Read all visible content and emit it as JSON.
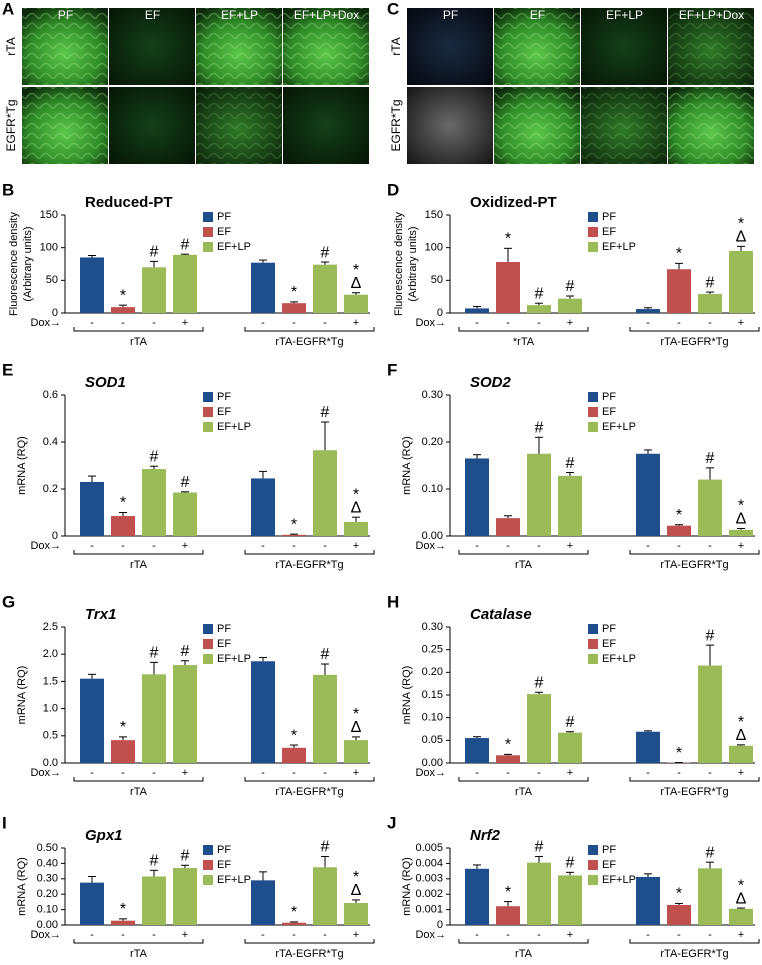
{
  "image_panels": [
    {
      "letter": "A",
      "columns": [
        "PF",
        "EF",
        "EF+LP",
        "EF+LP+Dox"
      ],
      "rows": [
        "rTA",
        "EGFR*Tg"
      ]
    },
    {
      "letter": "C",
      "columns": [
        "PF",
        "EF",
        "EF+LP",
        "EF+LP+Dox"
      ],
      "rows": [
        "rTA",
        "EGFR*Tg"
      ]
    }
  ],
  "chart_data": [
    {
      "type": "bar",
      "letter": "B",
      "title": "Reduced-PT",
      "title_italic": false,
      "ylabel": [
        "Fluorescence density",
        "(Arbitrary units)"
      ],
      "legend": [
        {
          "name": "PF",
          "color": "#1f4e8c"
        },
        {
          "name": "EF",
          "color": "#c0504d"
        },
        {
          "name": "EF+LP",
          "color": "#9bbb59"
        }
      ],
      "colors": [
        "#1f4e8c",
        "#c0504d",
        "#9bbb59",
        "#9bbb59",
        "#1f4e8c",
        "#c0504d",
        "#9bbb59",
        "#9bbb59"
      ],
      "dox_label": "Dox→",
      "dox": [
        "-",
        "-",
        "-",
        "+",
        "-",
        "-",
        "-",
        "+"
      ],
      "groups": [
        "rTA",
        "rTA-EGFR*Tg"
      ],
      "values": [
        85,
        9,
        70,
        89,
        77,
        15,
        74,
        28
      ],
      "errors": [
        3,
        3,
        9,
        1,
        4,
        2,
        4,
        3
      ],
      "annotations": [
        null,
        [
          "*"
        ],
        [
          "#"
        ],
        [
          "#"
        ],
        null,
        [
          "*"
        ],
        [
          "#"
        ],
        [
          "*",
          "Δ"
        ]
      ],
      "ylim": [
        0,
        150
      ],
      "yticks": [
        0,
        50,
        100,
        150
      ]
    },
    {
      "type": "bar",
      "letter": "D",
      "title": "Oxidized-PT",
      "title_italic": false,
      "ylabel": [
        "Fluorescence density",
        "(Arbitrary units)"
      ],
      "legend": [
        {
          "name": "PF",
          "color": "#1f4e8c"
        },
        {
          "name": "EF",
          "color": "#c0504d"
        },
        {
          "name": "EF+LP",
          "color": "#9bbb59"
        }
      ],
      "colors": [
        "#1f4e8c",
        "#c0504d",
        "#9bbb59",
        "#9bbb59",
        "#1f4e8c",
        "#c0504d",
        "#9bbb59",
        "#9bbb59"
      ],
      "dox_label": "Dox→",
      "dox": [
        "-",
        "-",
        "-",
        "+",
        "-",
        "-",
        "-",
        "+"
      ],
      "groups": [
        "*rTA",
        "rTA-EGFR*Tg"
      ],
      "values": [
        7,
        78,
        12,
        22,
        6,
        67,
        29,
        95
      ],
      "errors": [
        3,
        21,
        3,
        4,
        2,
        9,
        3,
        7
      ],
      "annotations": [
        null,
        [
          "*"
        ],
        [
          "#"
        ],
        [
          "#"
        ],
        null,
        [
          "*"
        ],
        [
          "#"
        ],
        [
          "*",
          "Δ"
        ]
      ],
      "ylim": [
        0,
        150
      ],
      "yticks": [
        0,
        50,
        100,
        150
      ]
    },
    {
      "type": "bar",
      "letter": "E",
      "title": "SOD1",
      "title_italic": true,
      "ylabel": [
        "mRNA (RQ)"
      ],
      "legend": [
        {
          "name": "PF",
          "color": "#1f4e8c"
        },
        {
          "name": "EF",
          "color": "#c0504d"
        },
        {
          "name": "EF+LP",
          "color": "#9bbb59"
        }
      ],
      "colors": [
        "#1f4e8c",
        "#c0504d",
        "#9bbb59",
        "#9bbb59",
        "#1f4e8c",
        "#c0504d",
        "#9bbb59",
        "#9bbb59"
      ],
      "dox_label": "Dox→",
      "dox": [
        "-",
        "-",
        "-",
        "+",
        "-",
        "-",
        "-",
        "+"
      ],
      "groups": [
        "rTA",
        "rTA-EGFR*Tg"
      ],
      "values": [
        0.23,
        0.085,
        0.285,
        0.185,
        0.245,
        0.005,
        0.365,
        0.06
      ],
      "errors": [
        0.025,
        0.015,
        0.012,
        0.003,
        0.03,
        0.003,
        0.12,
        0.02
      ],
      "annotations": [
        null,
        [
          "*"
        ],
        [
          "#"
        ],
        [
          "#"
        ],
        null,
        [
          "*"
        ],
        [
          "#"
        ],
        [
          "*",
          "Δ"
        ]
      ],
      "ylim": [
        0,
        0.6
      ],
      "yticks": [
        0,
        0.2,
        0.4,
        0.6
      ]
    },
    {
      "type": "bar",
      "letter": "F",
      "title": "SOD2",
      "title_italic": true,
      "ylabel": [
        "mRNA (RQ)"
      ],
      "legend": [
        {
          "name": "PF",
          "color": "#1f4e8c"
        },
        {
          "name": "EF",
          "color": "#c0504d"
        },
        {
          "name": "EF+LP",
          "color": "#9bbb59"
        }
      ],
      "colors": [
        "#1f4e8c",
        "#c0504d",
        "#9bbb59",
        "#9bbb59",
        "#1f4e8c",
        "#c0504d",
        "#9bbb59",
        "#9bbb59"
      ],
      "dox_label": "Dox→",
      "dox": [
        "-",
        "-",
        "-",
        "+",
        "-",
        "-",
        "-",
        "+"
      ],
      "groups": [
        "rTA",
        "rTA-EGFR*Tg"
      ],
      "values": [
        0.165,
        0.038,
        0.175,
        0.128,
        0.175,
        0.022,
        0.12,
        0.013
      ],
      "errors": [
        0.008,
        0.005,
        0.035,
        0.007,
        0.008,
        0.002,
        0.025,
        0.003
      ],
      "annotations": [
        null,
        null,
        [
          "#"
        ],
        [
          "#"
        ],
        null,
        [
          "*"
        ],
        [
          "#"
        ],
        [
          "*",
          "Δ"
        ]
      ],
      "ylim": [
        0,
        0.3
      ],
      "yticks": [
        {
          "value": 0,
          "label": "0.00"
        },
        {
          "value": 0.1,
          "label": "0.10"
        },
        {
          "value": 0.2,
          "label": "0.20"
        },
        {
          "value": 0.3,
          "label": "0.30"
        }
      ]
    },
    {
      "type": "bar",
      "letter": "G",
      "title": "Trx1",
      "title_italic": true,
      "ylabel": [
        "mRNA (RQ)"
      ],
      "legend": [
        {
          "name": "PF",
          "color": "#1f4e8c"
        },
        {
          "name": "EF",
          "color": "#c0504d"
        },
        {
          "name": "EF+LP",
          "color": "#9bbb59"
        }
      ],
      "colors": [
        "#1f4e8c",
        "#c0504d",
        "#9bbb59",
        "#9bbb59",
        "#1f4e8c",
        "#c0504d",
        "#9bbb59",
        "#9bbb59"
      ],
      "dox_label": "Dox→",
      "dox": [
        "-",
        "-",
        "-",
        "+",
        "-",
        "-",
        "-",
        "+"
      ],
      "groups": [
        "rTA",
        "rTA-EGFR*Tg"
      ],
      "values": [
        1.55,
        0.42,
        1.63,
        1.8,
        1.87,
        0.28,
        1.62,
        0.42
      ],
      "errors": [
        0.08,
        0.06,
        0.22,
        0.08,
        0.07,
        0.05,
        0.2,
        0.06
      ],
      "annotations": [
        null,
        [
          "*"
        ],
        [
          "#"
        ],
        [
          "#"
        ],
        null,
        [
          "*"
        ],
        [
          "#"
        ],
        [
          "*",
          "Δ"
        ]
      ],
      "ylim": [
        0,
        2.5
      ],
      "yticks": [
        {
          "value": 0,
          "label": "0.0"
        },
        0.5,
        {
          "value": 1,
          "label": "1.0"
        },
        1.5,
        {
          "value": 2,
          "label": "2.0"
        },
        2.5
      ]
    },
    {
      "type": "bar",
      "letter": "H",
      "title": "Catalase",
      "title_italic": true,
      "ylabel": [
        "mRNA (RQ)"
      ],
      "legend": [
        {
          "name": "PF",
          "color": "#1f4e8c"
        },
        {
          "name": "EF",
          "color": "#c0504d"
        },
        {
          "name": "EF+LP",
          "color": "#9bbb59"
        }
      ],
      "colors": [
        "#1f4e8c",
        "#c0504d",
        "#9bbb59",
        "#9bbb59",
        "#1f4e8c",
        "#c0504d",
        "#9bbb59",
        "#9bbb59"
      ],
      "dox_label": "Dox→",
      "dox": [
        "-",
        "-",
        "-",
        "+",
        "-",
        "-",
        "-",
        "+"
      ],
      "groups": [
        "rTA",
        "rTA-EGFR*Tg"
      ],
      "values": [
        0.055,
        0.017,
        0.152,
        0.067,
        0.069,
        0.001,
        0.215,
        0.038
      ],
      "errors": [
        0.003,
        0.002,
        0.004,
        0.002,
        0.002,
        0,
        0.045,
        0.002
      ],
      "annotations": [
        null,
        [
          "*"
        ],
        [
          "#"
        ],
        [
          "#"
        ],
        null,
        [
          "*"
        ],
        [
          "#"
        ],
        [
          "*",
          "Δ"
        ]
      ],
      "ylim": [
        0,
        0.3
      ],
      "yticks": [
        {
          "value": 0,
          "label": "0.00"
        },
        0.05,
        {
          "value": 0.1,
          "label": "0.10"
        },
        0.15,
        {
          "value": 0.2,
          "label": "0.20"
        },
        0.25,
        {
          "value": 0.3,
          "label": "0.30"
        }
      ]
    },
    {
      "type": "bar",
      "letter": "I",
      "title": "Gpx1",
      "title_italic": true,
      "ylabel": [
        "mRNA (RQ)"
      ],
      "legend": [
        {
          "name": "PF",
          "color": "#1f4e8c"
        },
        {
          "name": "EF",
          "color": "#c0504d"
        },
        {
          "name": "EF+LP",
          "color": "#9bbb59"
        }
      ],
      "colors": [
        "#1f4e8c",
        "#c0504d",
        "#9bbb59",
        "#9bbb59",
        "#1f4e8c",
        "#c0504d",
        "#9bbb59",
        "#9bbb59"
      ],
      "dox_label": "Dox→",
      "dox": [
        "-",
        "-",
        "-",
        "+",
        "-",
        "-",
        "-",
        "+"
      ],
      "groups": [
        "rTA",
        "rTA-EGFR*Tg"
      ],
      "values": [
        0.275,
        0.028,
        0.315,
        0.37,
        0.29,
        0.015,
        0.375,
        0.143
      ],
      "errors": [
        0.04,
        0.012,
        0.04,
        0.018,
        0.055,
        0.005,
        0.07,
        0.02
      ],
      "annotations": [
        null,
        [
          "*"
        ],
        [
          "#"
        ],
        [
          "#"
        ],
        null,
        [
          "*"
        ],
        [
          "#"
        ],
        [
          "*",
          "Δ"
        ]
      ],
      "ylim": [
        0,
        0.5
      ],
      "yticks": [
        {
          "value": 0,
          "label": "0.00"
        },
        {
          "value": 0.1,
          "label": "0.10"
        },
        {
          "value": 0.2,
          "label": "0.20"
        },
        {
          "value": 0.3,
          "label": "0.30"
        },
        {
          "value": 0.4,
          "label": "0.40"
        },
        {
          "value": 0.5,
          "label": "0.50"
        }
      ]
    },
    {
      "type": "bar",
      "letter": "J",
      "title": "Nrf2",
      "title_italic": true,
      "ylabel": [
        "mRNA (RQ)"
      ],
      "legend": [
        {
          "name": "PF",
          "color": "#1f4e8c"
        },
        {
          "name": "EF",
          "color": "#c0504d"
        },
        {
          "name": "EF+LP",
          "color": "#9bbb59"
        }
      ],
      "colors": [
        "#1f4e8c",
        "#c0504d",
        "#9bbb59",
        "#9bbb59",
        "#1f4e8c",
        "#c0504d",
        "#9bbb59",
        "#9bbb59"
      ],
      "dox_label": "Dox→",
      "dox": [
        "-",
        "-",
        "-",
        "+",
        "-",
        "-",
        "-",
        "+"
      ],
      "groups": [
        "rTA",
        "rTA-EGFR*Tg"
      ],
      "values": [
        0.00365,
        0.00122,
        0.00405,
        0.00322,
        0.00312,
        0.0013,
        0.00368,
        0.00105
      ],
      "errors": [
        0.00025,
        0.0003,
        0.0004,
        0.0002,
        0.0002,
        0.0001,
        0.0004,
        5e-05
      ],
      "annotations": [
        null,
        [
          "*"
        ],
        [
          "#"
        ],
        [
          "#"
        ],
        null,
        [
          "*"
        ],
        [
          "#"
        ],
        [
          "*",
          "Δ"
        ]
      ],
      "ylim": [
        0,
        0.005
      ],
      "yticks": [
        0,
        0.001,
        0.002,
        0.003,
        0.004,
        0.005
      ]
    }
  ]
}
